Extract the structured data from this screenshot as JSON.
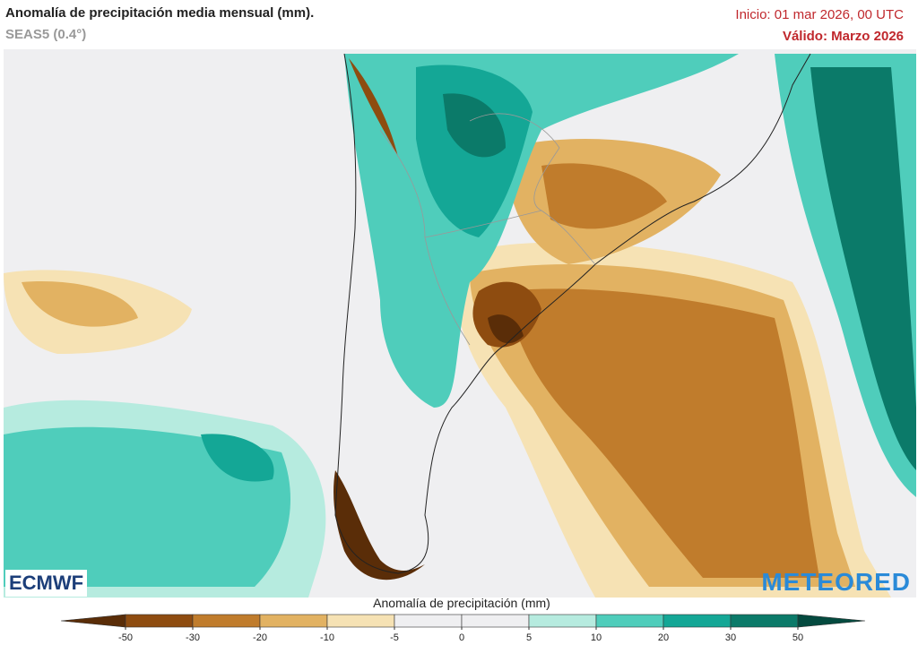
{
  "header": {
    "title": "Anomalía de precipitación media mensual (mm).",
    "subtitle": "SEAS5 (0.4°)",
    "init": "Inicio: 01 mar 2026, 00 UTC",
    "valid": "Válido: Marzo 2026"
  },
  "logos": {
    "left": "ECMWF",
    "right": "METEORED"
  },
  "colorbar": {
    "title": "Anomalía de precipitación (mm)",
    "ticks": [
      -50,
      -30,
      -20,
      -10,
      -5,
      0,
      5,
      10,
      20,
      30,
      50
    ],
    "colors": [
      "#5a2d08",
      "#8e4c10",
      "#c07c2c",
      "#e2b262",
      "#f6e2b4",
      "#efeff1",
      "#efeff1",
      "#b6ebdf",
      "#4fcdbb",
      "#14a796",
      "#0b7a69",
      "#044a3f"
    ]
  }
}
